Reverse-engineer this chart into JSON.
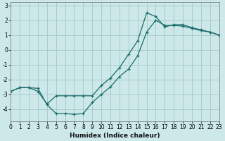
{
  "title": "",
  "xlabel": "Humidex (Indice chaleur)",
  "bg_color": "#cce8e8",
  "grid_color": "#aacccc",
  "line_color": "#1a6b6b",
  "x_min": 0,
  "x_max": 23,
  "y_min": -4.8,
  "y_max": 3.2,
  "line1_x": [
    0,
    1,
    2,
    3,
    4,
    5,
    6,
    7,
    8,
    9,
    10,
    11,
    12,
    13,
    14,
    15,
    16,
    17,
    18,
    19,
    20,
    21,
    22,
    23
  ],
  "line1_y": [
    -2.8,
    -2.55,
    -2.55,
    -2.6,
    -3.7,
    -4.3,
    -4.3,
    -4.35,
    -4.3,
    -3.55,
    -3.0,
    -2.5,
    -1.8,
    -1.3,
    -0.4,
    1.2,
    2.0,
    1.65,
    1.65,
    1.6,
    1.45,
    1.3,
    1.2,
    1.0
  ],
  "line2_x": [
    0,
    1,
    2,
    3,
    4,
    5,
    6,
    7,
    8,
    9,
    10,
    11,
    12,
    13,
    14,
    15,
    16,
    17,
    18,
    19,
    20,
    21,
    22,
    23
  ],
  "line2_y": [
    -2.8,
    -2.55,
    -2.55,
    -2.8,
    -3.65,
    -3.1,
    -3.1,
    -3.1,
    -3.1,
    -3.1,
    -2.4,
    -1.9,
    -1.2,
    -0.3,
    0.6,
    2.5,
    2.25,
    1.55,
    1.7,
    1.7,
    1.5,
    1.35,
    1.2,
    1.0
  ]
}
